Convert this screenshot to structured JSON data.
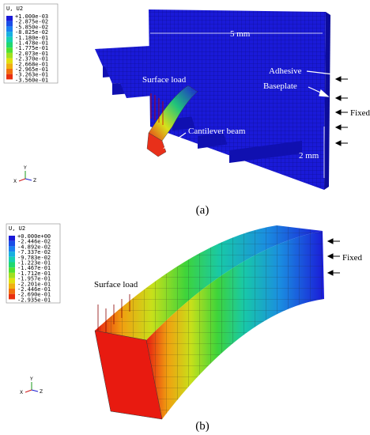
{
  "panel_a": {
    "legend": {
      "title": "U, U2",
      "values": [
        "+1.000e-03",
        "-2.875e-02",
        "-5.850e-02",
        "-8.825e-02",
        "-1.180e-01",
        "-1.478e-01",
        "-1.775e-01",
        "-2.073e-01",
        "-2.370e-01",
        "-2.668e-01",
        "-2.965e-01",
        "-3.263e-01",
        "-3.560e-01"
      ]
    },
    "labels": {
      "width": "5 mm",
      "adhesive": "Adhesive",
      "baseplate": "Baseplate",
      "fixed": "Fixed",
      "surface_load": "Surface load",
      "cantilever": "Cantilever beam",
      "height": "2 mm"
    },
    "triad": {
      "y": "Y",
      "x": "X",
      "z": "Z"
    },
    "caption": "(a)"
  },
  "panel_b": {
    "legend": {
      "title": "U, U2",
      "values": [
        "+0.000e+00",
        "-2.446e-02",
        "-4.892e-02",
        "-7.337e-02",
        "-9.783e-02",
        "-1.223e-01",
        "-1.467e-01",
        "-1.712e-01",
        "-1.957e-01",
        "-2.201e-01",
        "-2.446e-01",
        "-2.690e-01",
        "-2.935e-01"
      ]
    },
    "labels": {
      "surface_load": "Surface load",
      "fixed": "Fixed"
    },
    "triad": {
      "y": "Y",
      "x": "X",
      "z": "Z"
    },
    "caption": "(b)"
  }
}
